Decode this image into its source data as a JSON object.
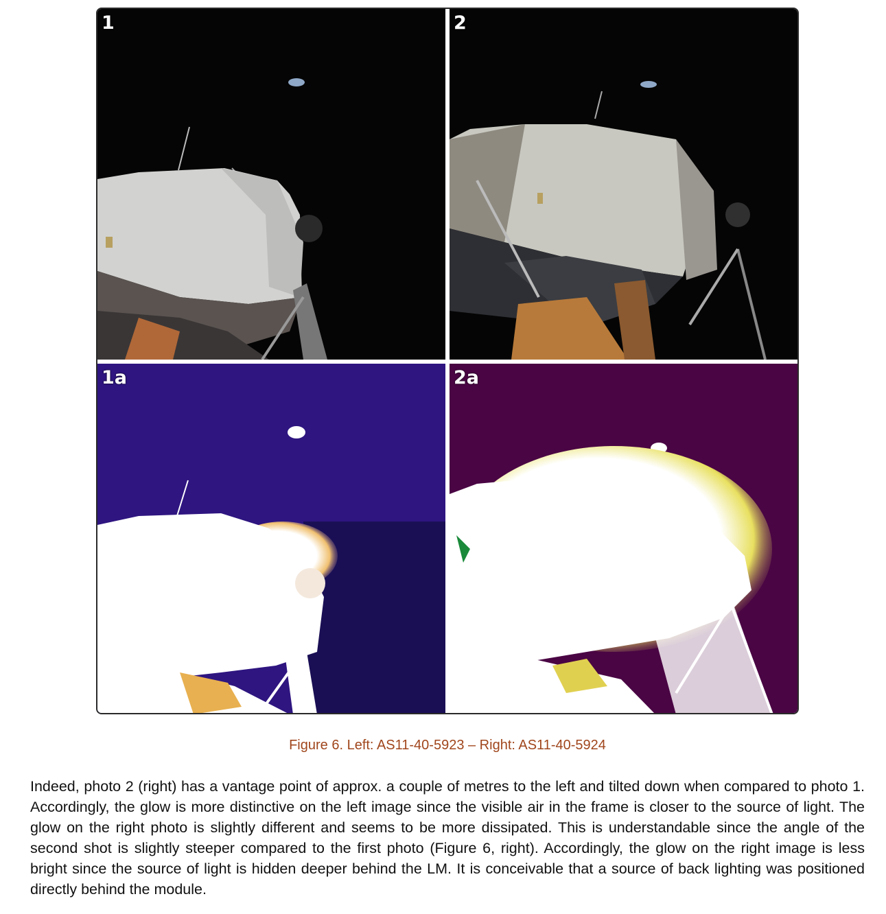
{
  "figure": {
    "panels": [
      {
        "label": "1"
      },
      {
        "label": "2"
      },
      {
        "label": "1a"
      },
      {
        "label": "2a"
      }
    ],
    "caption": "Figure 6. Left: AS11-40-5923 – Right: AS11-40-5924"
  },
  "paragraph": "Indeed, photo 2 (right) has a vantage point of approx. a couple of metres to the left and tilted down when compared to photo 1. Accordingly, the glow is more distinctive on the left image since the visible air in the frame is closer to the source of light. The glow on the right photo is slightly different and seems to be more dissipated. This is understandable since the angle of the second shot is slightly steeper compared to the first photo (Figure 6, right). Accordingly, the glow on the right image is less bright since the source of light is hidden deeper behind the LM. It is conceivable that a source of back lighting was positioned directly behind the module.",
  "colors": {
    "caption": "#a0461c",
    "space": "#050505",
    "enhanced_left_sky": "#2e1580",
    "enhanced_right_sky": "#4a0544"
  }
}
